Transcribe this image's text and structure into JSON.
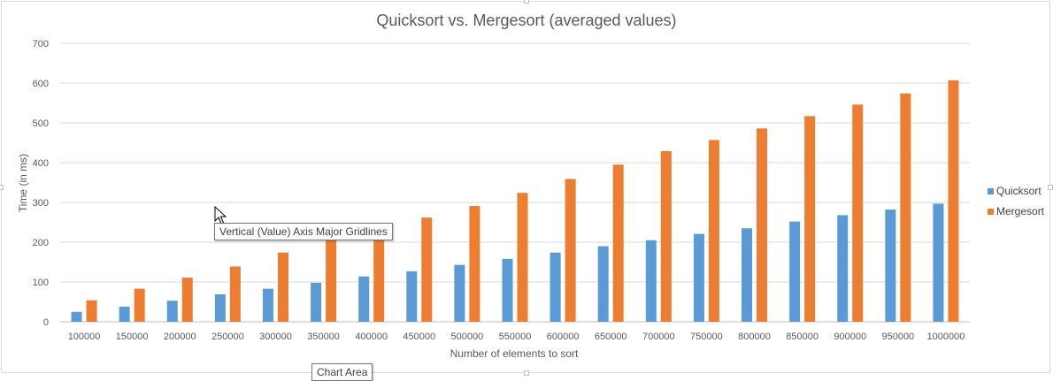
{
  "chart_data": {
    "type": "bar",
    "title": "Quicksort vs. Mergesort (averaged values)",
    "xlabel": "Number of elements to sort",
    "ylabel": "Time (in ms)",
    "ylim": [
      0,
      700
    ],
    "yticks": [
      0,
      100,
      200,
      300,
      400,
      500,
      600,
      700
    ],
    "grid": true,
    "legend_position": "right",
    "categories": [
      "100000",
      "150000",
      "200000",
      "250000",
      "300000",
      "350000",
      "400000",
      "450000",
      "500000",
      "550000",
      "600000",
      "650000",
      "700000",
      "750000",
      "800000",
      "850000",
      "900000",
      "950000",
      "1000000"
    ],
    "series": [
      {
        "name": "Quicksort",
        "color": "#5B9BD5",
        "values": [
          25,
          38,
          53,
          69,
          83,
          98,
          114,
          127,
          143,
          158,
          174,
          190,
          205,
          221,
          235,
          252,
          268,
          282,
          297
        ]
      },
      {
        "name": "Mergesort",
        "color": "#ED7D31",
        "values": [
          54,
          83,
          111,
          139,
          174,
          212,
          216,
          262,
          291,
          324,
          359,
          395,
          429,
          457,
          486,
          517,
          546,
          574,
          607
        ]
      }
    ]
  },
  "tooltips": {
    "gridlines": "Vertical (Value) Axis Major Gridlines",
    "chart_area": "Chart Area"
  }
}
